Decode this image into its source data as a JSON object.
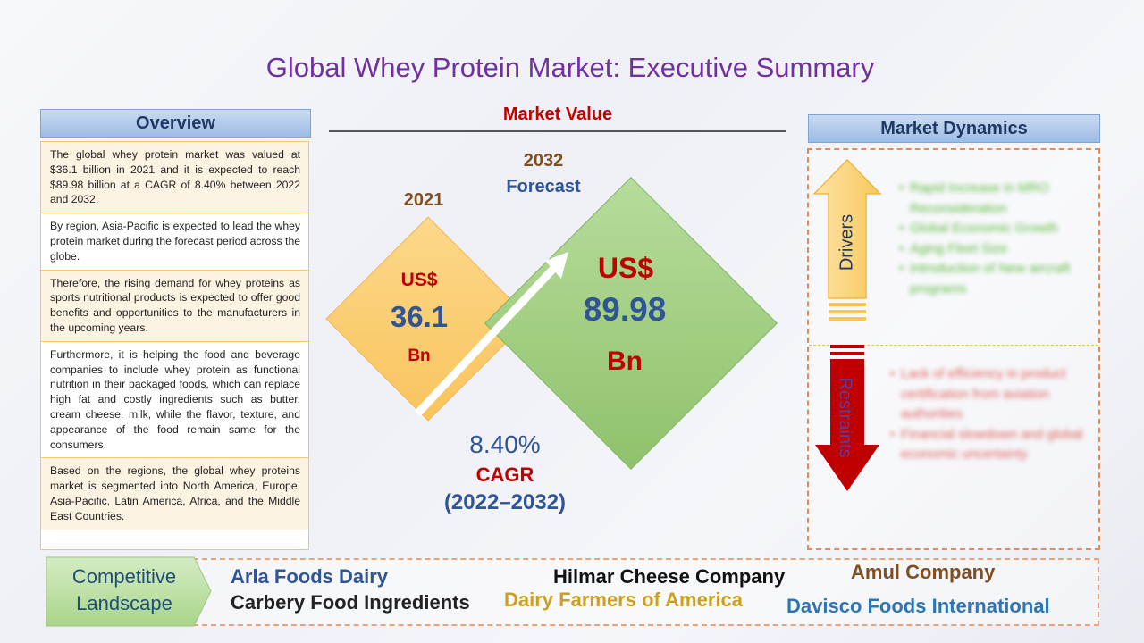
{
  "title": "Global Whey Protein Market: Executive Summary",
  "overview": {
    "heading": "Overview",
    "paragraphs": [
      "The global whey protein market was valued at $36.1 billion in 2021 and it is expected to reach $89.98 billion at a CAGR of 8.40% between 2022 and 2032.",
      "By region, Asia-Pacific is expected to lead the whey protein market during the forecast period across the globe.",
      "Therefore, the rising demand for whey proteins as sports nutritional products is expected to offer good benefits and opportunities to the manufacturers in the upcoming years.",
      "Furthermore, it is helping the food and beverage companies to include whey protein as functional nutrition in their packaged foods, which can replace high fat and costly ingredients such as butter, cream cheese, milk, while the flavor, texture, and appearance of the food remain same for the consumers.",
      "Based on the regions, the global whey proteins market is segmented into North America, Europe, Asia-Pacific, Latin America, Africa, and the Middle East Countries."
    ]
  },
  "market_value": {
    "heading": "Market Value",
    "base_year": "2021",
    "forecast_year": "2032",
    "forecast_label": "Forecast",
    "base": {
      "currency": "US$",
      "value": "36.1",
      "unit": "Bn"
    },
    "forecast": {
      "currency": "US$",
      "value": "89.98",
      "unit": "Bn"
    },
    "cagr_value": "8.40%",
    "cagr_label": "CAGR",
    "cagr_period": "(2022–2032)"
  },
  "market_dynamics": {
    "heading": "Market Dynamics",
    "drivers_label": "Drivers",
    "restraints_label": "Restraints",
    "drivers": [
      "Rapid Increase in MRO Reconsideration",
      "Global Economic Growth",
      "Aging Fleet Size",
      "Introduction of New aircraft programs"
    ],
    "restraints": [
      "Lack of efficiency in product certification from aviation authorities",
      "Financial slowdown and global economic uncertainty"
    ]
  },
  "competitive_landscape": {
    "label_line1": "Competitive",
    "label_line2": "Landscape",
    "companies": [
      "Arla Foods Dairy",
      "Hilmar Cheese Company",
      "Amul Company",
      "Carbery Food Ingredients",
      "Dairy Farmers of America",
      "Davisco Foods International"
    ]
  },
  "colors": {
    "title": "#7030a0",
    "blue_text": "#2f5597",
    "red_text": "#c00000",
    "brown_text": "#7f4f21",
    "gold_text": "#c9a020",
    "driver_arrow": "#fcd77f",
    "restraint_arrow": "#c00000",
    "green_diamond": "#9ccc7c",
    "yellow_diamond": "#fbcf73"
  }
}
